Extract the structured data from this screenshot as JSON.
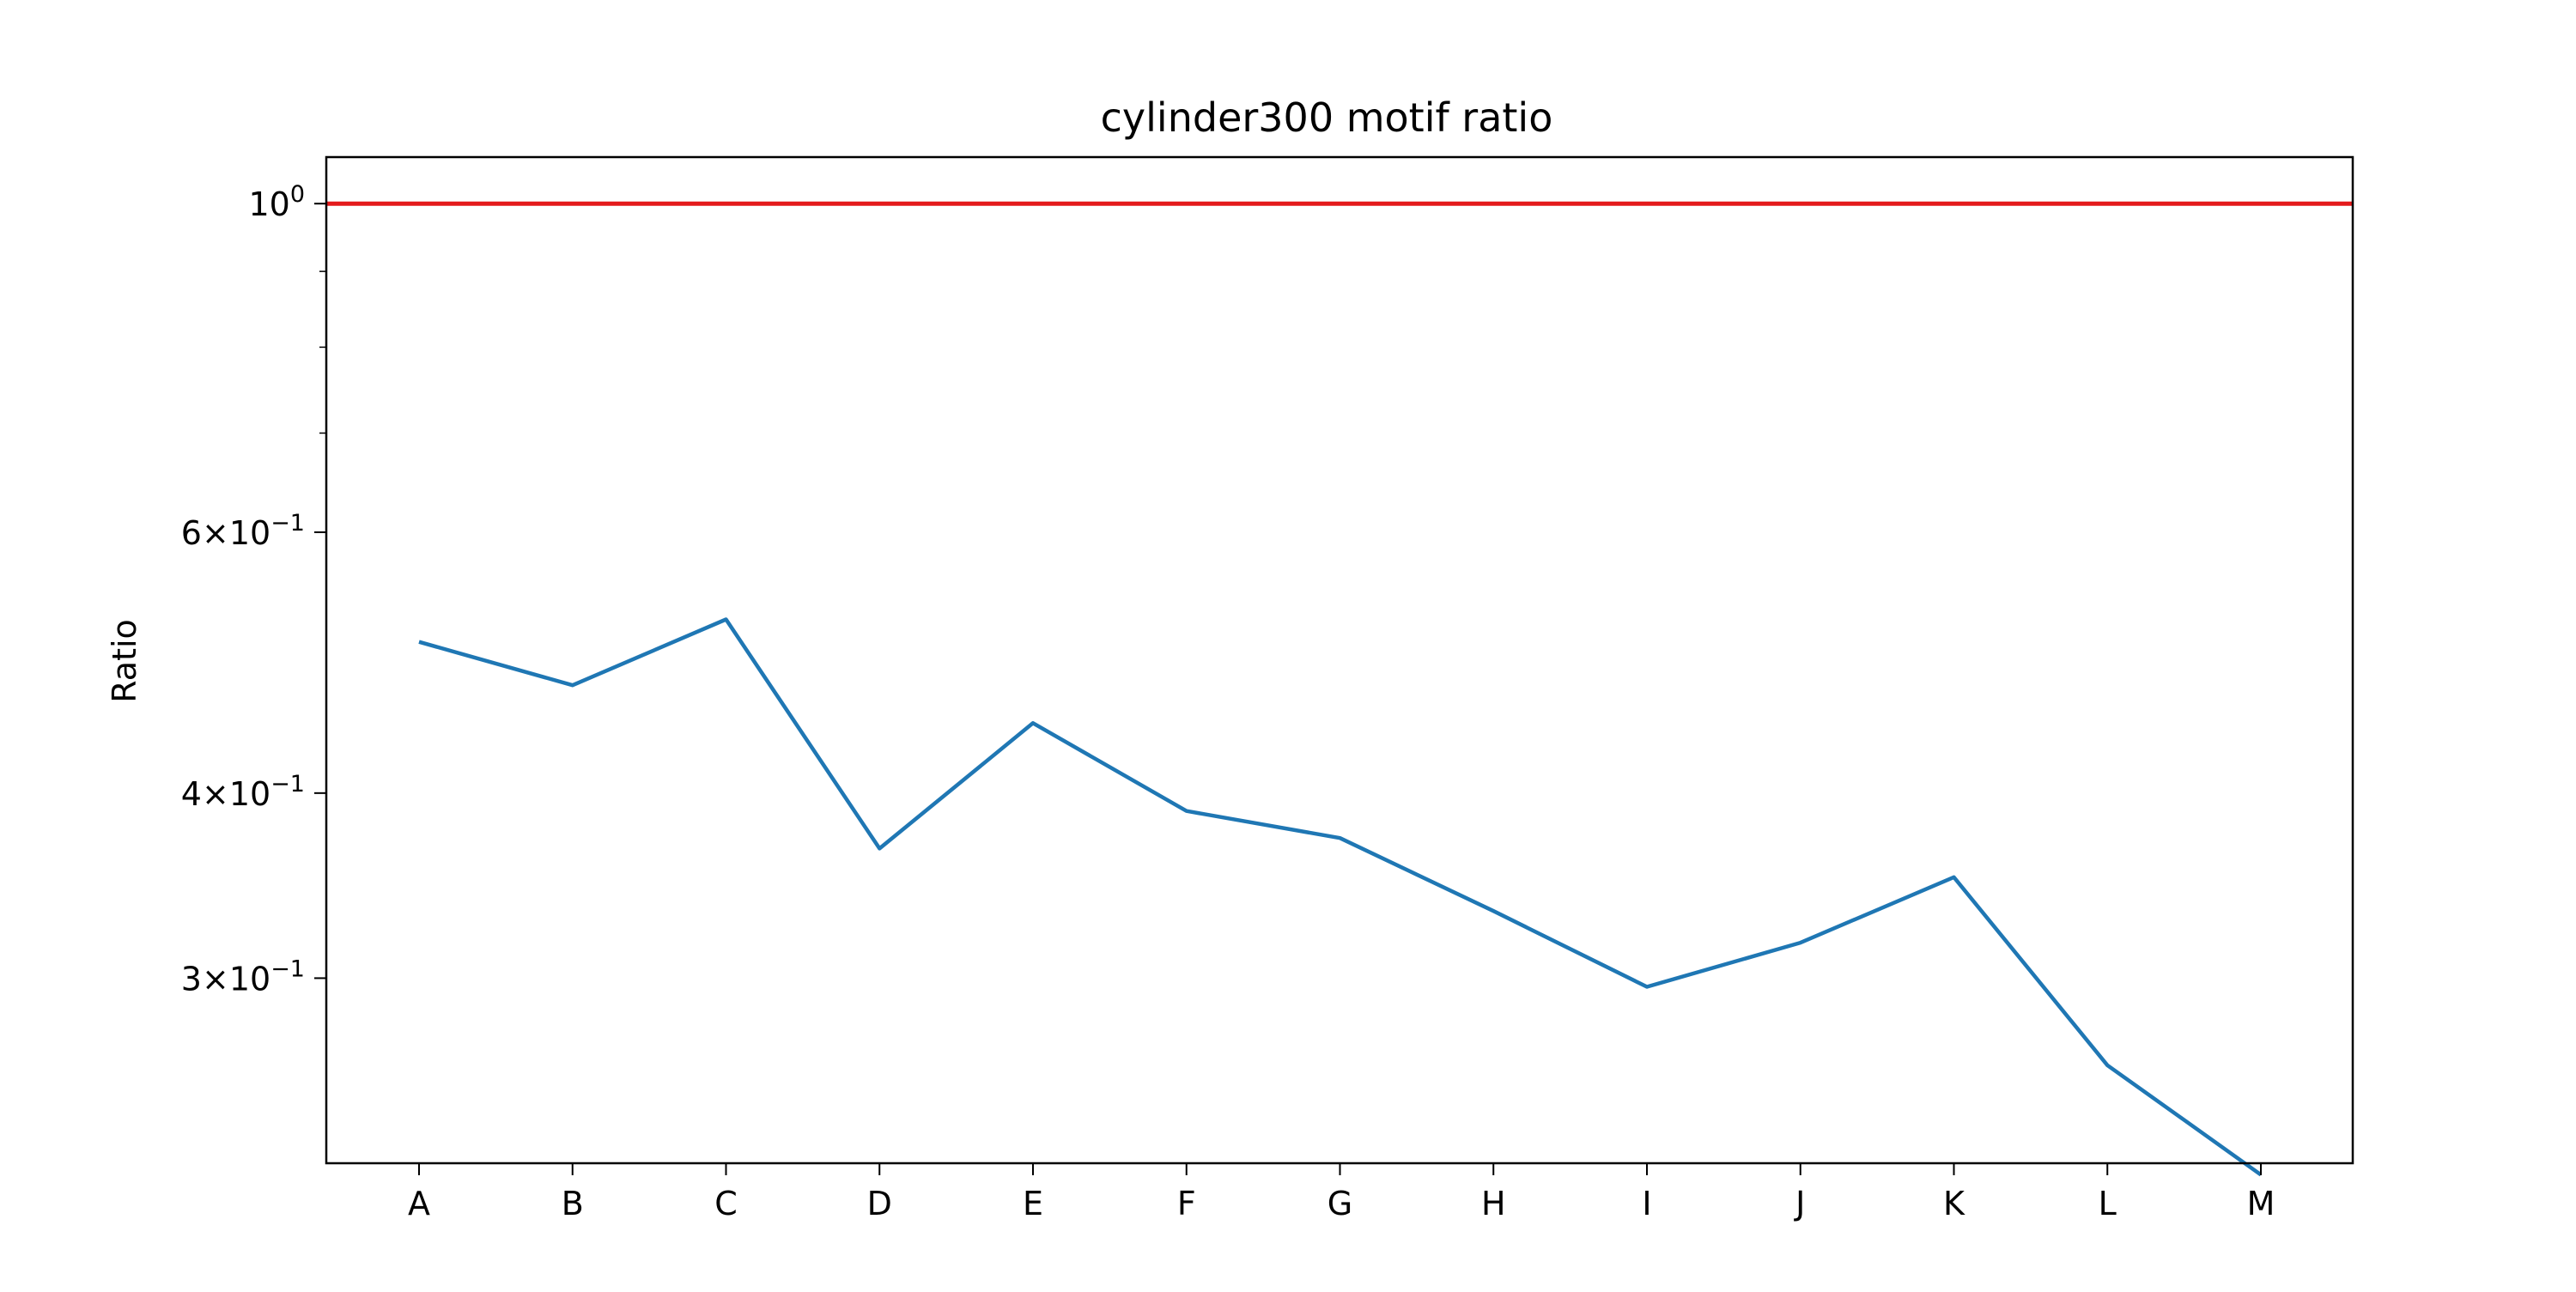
{
  "chart_data": {
    "type": "line",
    "title": "cylinder300 motif ratio",
    "xlabel": "",
    "ylabel": "Ratio",
    "yscale": "log",
    "ylim": [
      0.225,
      1.075
    ],
    "grid": false,
    "legend": "none",
    "categories": [
      "A",
      "B",
      "C",
      "D",
      "E",
      "F",
      "G",
      "H",
      "I",
      "J",
      "K",
      "L",
      "M"
    ],
    "series": [
      {
        "color": "#1f77b4",
        "values": [
          0.506,
          0.473,
          0.524,
          0.367,
          0.446,
          0.389,
          0.373,
          0.333,
          0.296,
          0.317,
          0.351,
          0.262,
          0.221
        ]
      }
    ],
    "reference_line": {
      "y": 1.0,
      "color": "#e41a1c"
    },
    "y_ticks": [
      {
        "value": 1.0,
        "base": "10",
        "exp": "0",
        "mant": ""
      },
      {
        "value": 0.6,
        "mant": "6",
        "base": "10",
        "exp": "−1"
      },
      {
        "value": 0.4,
        "mant": "4",
        "base": "10",
        "exp": "−1"
      },
      {
        "value": 0.3,
        "mant": "3",
        "base": "10",
        "exp": "−1"
      }
    ],
    "y_minor_ticks": [
      0.7,
      0.8,
      0.9
    ],
    "times_sign": "×"
  }
}
